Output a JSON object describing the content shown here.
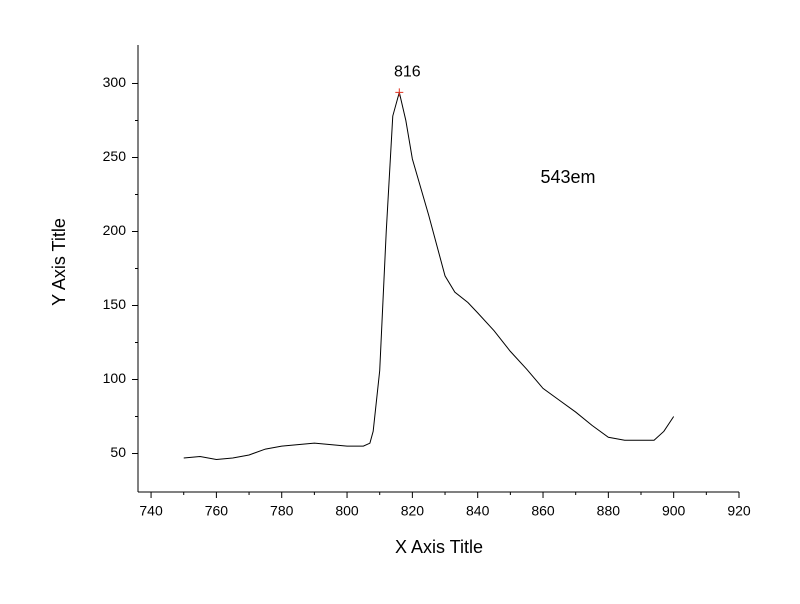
{
  "chart_data": {
    "type": "line",
    "x_label": "X Axis Title",
    "y_label": "Y Axis Title",
    "annotation": "543em",
    "x": [
      750,
      755,
      760,
      765,
      770,
      775,
      780,
      785,
      790,
      795,
      800,
      805,
      807,
      808,
      810,
      812,
      814,
      816,
      818,
      820,
      825,
      830,
      833,
      837,
      840,
      845,
      850,
      855,
      860,
      865,
      870,
      875,
      880,
      885,
      890,
      894,
      897,
      900
    ],
    "series": [
      {
        "color": "#000000",
        "values": [
          47,
          48,
          46,
          47,
          49,
          53,
          55,
          56,
          57,
          56,
          55,
          55,
          57,
          65,
          106,
          200,
          278,
          294,
          275,
          249,
          211,
          170,
          159,
          152,
          145,
          133,
          119,
          107,
          94,
          86,
          78,
          69,
          61,
          59,
          59,
          59,
          65,
          75
        ]
      }
    ],
    "peak": {
      "x": 816,
      "y": 294,
      "color": "#e0301e"
    },
    "xlim": [
      736,
      920
    ],
    "ylim": [
      24,
      326
    ],
    "xticks": [
      740,
      760,
      780,
      800,
      820,
      840,
      860,
      880,
      900,
      920
    ],
    "yticks": [
      50,
      100,
      150,
      200,
      250,
      300
    ],
    "grid": false
  }
}
